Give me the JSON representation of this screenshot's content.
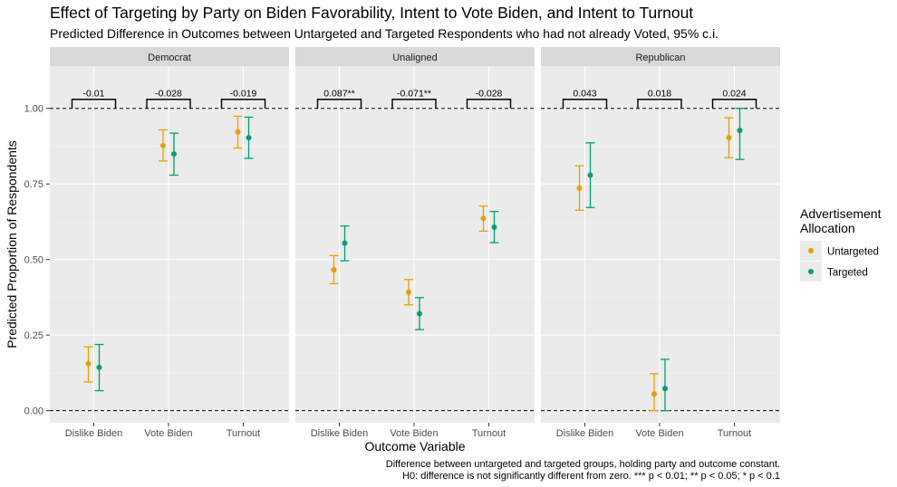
{
  "chart_data": {
    "type": "scatter",
    "title": "Effect of Targeting by Party on Biden Favorability, Intent to Vote Biden, and Intent to Turnout",
    "subtitle": "Predicted Difference in Outcomes between Untargeted and Targeted Respondents who had not already Voted, 95% c.i.",
    "xlabel": "Outcome  Variable",
    "ylabel": "Predicted Proportion of Respondents",
    "ylim": [
      -0.04,
      1.14
    ],
    "yticks": [
      0,
      0.25,
      0.5,
      0.75,
      1
    ],
    "ytick_labels": [
      "0.00",
      "0.25",
      "0.50",
      "0.75",
      "1.00"
    ],
    "categories": [
      "Dislike Biden",
      "Vote Biden",
      "Turnout"
    ],
    "reference_lines": [
      0,
      1
    ],
    "legend": {
      "title": "Advertisement Allocation",
      "position": "right",
      "items": [
        {
          "label": "Untargeted",
          "color": "#E69F00"
        },
        {
          "label": "Targeted",
          "color": "#009E73"
        }
      ]
    },
    "caption": [
      "Difference between untargeted and targeted groups, holding party and outcome constant.",
      "H0: difference is not significantly different from zero. *** p < 0.01; ** p < 0.05; * p < 0.1"
    ],
    "panels": [
      {
        "name": "Democrat",
        "diff_labels": [
          "-0.01",
          "-0.028",
          "-0.019"
        ],
        "series": [
          {
            "name": "Untargeted",
            "color": "#E69F00",
            "values": [
              0.155,
              0.877,
              0.922
            ],
            "ci_low": [
              0.095,
              0.826,
              0.869
            ],
            "ci_high": [
              0.211,
              0.929,
              0.974
            ]
          },
          {
            "name": "Targeted",
            "color": "#009E73",
            "values": [
              0.143,
              0.849,
              0.903
            ],
            "ci_low": [
              0.066,
              0.779,
              0.835
            ],
            "ci_high": [
              0.219,
              0.918,
              0.971
            ]
          }
        ]
      },
      {
        "name": "Unaligned",
        "diff_labels": [
          "0.087**",
          "-0.071**",
          "-0.028"
        ],
        "series": [
          {
            "name": "Untargeted",
            "color": "#E69F00",
            "values": [
              0.466,
              0.392,
              0.636
            ],
            "ci_low": [
              0.42,
              0.35,
              0.594
            ],
            "ci_high": [
              0.513,
              0.434,
              0.677
            ]
          },
          {
            "name": "Targeted",
            "color": "#009E73",
            "values": [
              0.554,
              0.321,
              0.607
            ],
            "ci_low": [
              0.496,
              0.268,
              0.556
            ],
            "ci_high": [
              0.611,
              0.374,
              0.659
            ]
          }
        ]
      },
      {
        "name": "Republican",
        "diff_labels": [
          "0.043",
          "0.018",
          "0.024"
        ],
        "series": [
          {
            "name": "Untargeted",
            "color": "#E69F00",
            "values": [
              0.736,
              0.055,
              0.903
            ],
            "ci_low": [
              0.663,
              0.0,
              0.837
            ],
            "ci_high": [
              0.81,
              0.122,
              0.969
            ]
          },
          {
            "name": "Targeted",
            "color": "#009E73",
            "values": [
              0.779,
              0.073,
              0.927
            ],
            "ci_low": [
              0.672,
              0.0,
              0.831
            ],
            "ci_high": [
              0.886,
              0.17,
              1.0
            ]
          }
        ]
      }
    ]
  }
}
